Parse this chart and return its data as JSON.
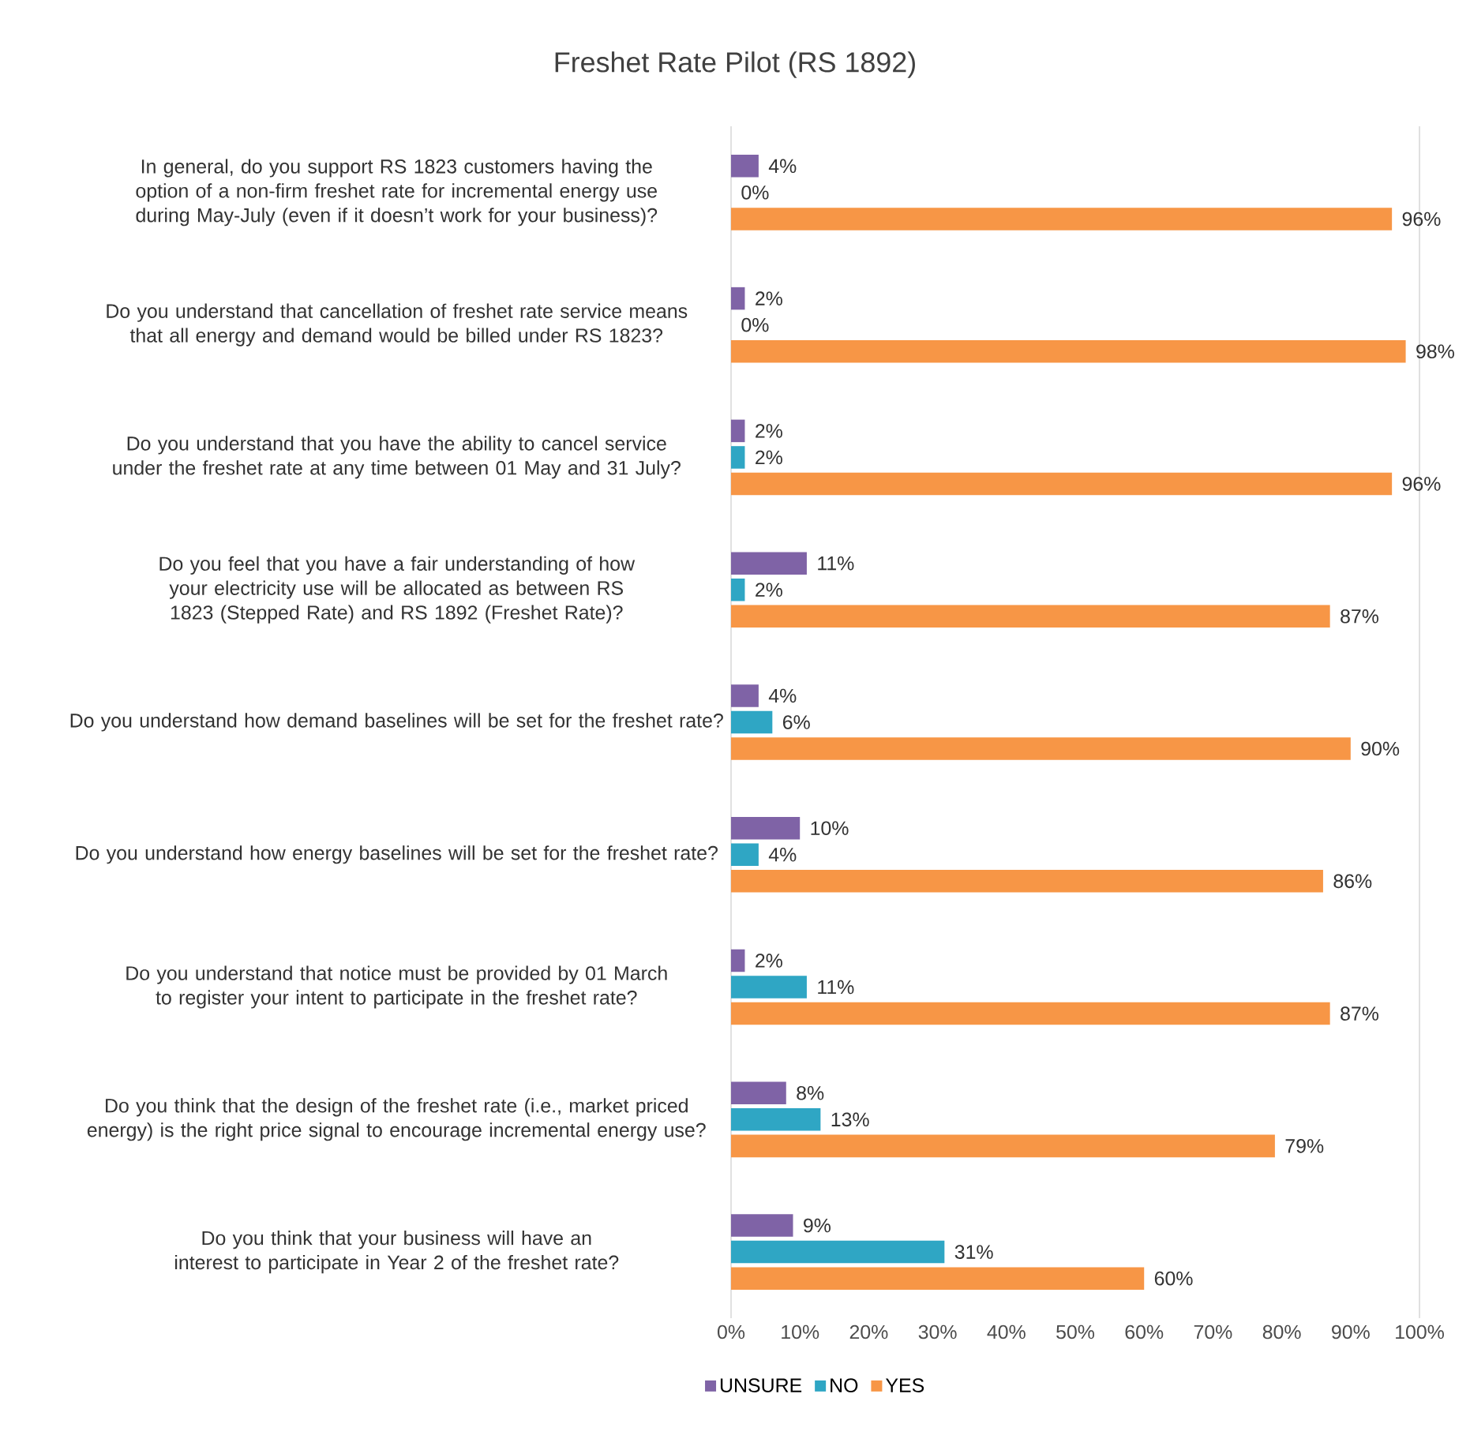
{
  "chart_data": {
    "type": "bar",
    "orientation": "horizontal",
    "title": "Freshet Rate Pilot (RS 1892)",
    "categories": [
      "In general, do you support RS 1823 customers having the option of a non-firm freshet rate for incremental energy use during May-July (even if it doesn’t work for your business)?",
      "Do you understand that cancellation of freshet rate service means that all energy and demand would be billed under RS 1823?",
      "Do you understand that you have the ability to cancel service under the freshet rate at any time between 01 May and 31 July?",
      "Do you feel that you have a fair understanding of how your electricity use will be allocated as between RS 1823 (Stepped Rate) and RS 1892 (Freshet Rate)?",
      "Do you understand how demand baselines will be set for the freshet rate?",
      "Do you understand how energy baselines will be set for the freshet rate?",
      "Do you understand that notice must be provided by 01 March to register your intent to participate in the freshet rate?",
      "Do you think that the design of the freshet rate (i.e., market priced energy) is the right price signal to encourage incremental energy use?",
      "Do you think that your business will have an interest to participate in Year 2 of the freshet rate?"
    ],
    "series": [
      {
        "name": "UNSURE",
        "color": "#7f63a6",
        "values": [
          4,
          2,
          2,
          11,
          4,
          10,
          2,
          8,
          9
        ],
        "value_labels": [
          "4%",
          "2%",
          "2%",
          "11%",
          "4%",
          "10%",
          "2%",
          "8%",
          "9%"
        ]
      },
      {
        "name": "NO",
        "color": "#2fa6c4",
        "values": [
          0,
          0,
          2,
          2,
          6,
          4,
          11,
          13,
          31
        ],
        "value_labels": [
          "0%",
          "0%",
          "2%",
          "2%",
          "6%",
          "4%",
          "11%",
          "13%",
          "31%"
        ]
      },
      {
        "name": "YES",
        "color": "#f79646",
        "values": [
          96,
          98,
          96,
          87,
          90,
          86,
          87,
          79,
          60
        ],
        "value_labels": [
          "96%",
          "98%",
          "96%",
          "87%",
          "90%",
          "86%",
          "87%",
          "79%",
          "60%"
        ]
      }
    ],
    "xlim": [
      0,
      100
    ],
    "xticks": [
      {
        "value": 0,
        "label": "0%"
      },
      {
        "value": 10,
        "label": "10%"
      },
      {
        "value": 20,
        "label": "20%"
      },
      {
        "value": 30,
        "label": "30%"
      },
      {
        "value": 40,
        "label": "40%"
      },
      {
        "value": 50,
        "label": "50%"
      },
      {
        "value": 60,
        "label": "60%"
      },
      {
        "value": 70,
        "label": "70%"
      },
      {
        "value": 80,
        "label": "80%"
      },
      {
        "value": 90,
        "label": "90%"
      },
      {
        "value": 100,
        "label": "100%"
      }
    ],
    "legend": "bottom"
  }
}
